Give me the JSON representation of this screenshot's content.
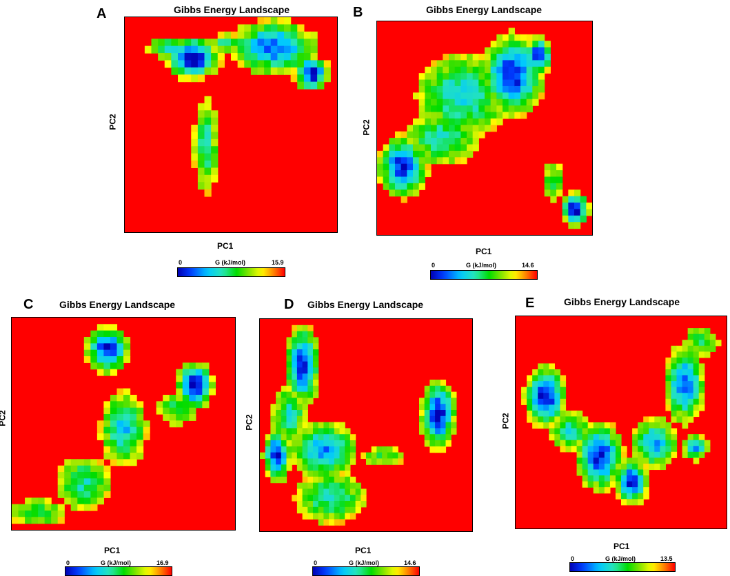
{
  "chart_data": [
    {
      "type": "heatmap",
      "panel": "A",
      "title": "Gibbs Energy Landscape",
      "xlabel": "PC1",
      "ylabel": "PC2",
      "colorbar": {
        "label": "G (kJ/mol)",
        "min": "0",
        "max": "15.9"
      },
      "grid": {
        "nx": 32,
        "ny": 30
      },
      "minima": [
        {
          "x": 0.32,
          "y": 0.81,
          "sx": 0.08,
          "sy": 0.06,
          "depth": 1.0
        },
        {
          "x": 0.88,
          "y": 0.74,
          "sx": 0.05,
          "sy": 0.05,
          "depth": 1.0
        },
        {
          "x": 0.7,
          "y": 0.86,
          "sx": 0.13,
          "sy": 0.08,
          "depth": 0.85
        },
        {
          "x": 0.38,
          "y": 0.4,
          "sx": 0.04,
          "sy": 0.16,
          "depth": 0.6
        },
        {
          "x": 0.22,
          "y": 0.86,
          "sx": 0.08,
          "sy": 0.04,
          "depth": 0.6
        },
        {
          "x": 0.5,
          "y": 0.88,
          "sx": 0.1,
          "sy": 0.03,
          "depth": 0.55
        }
      ]
    },
    {
      "type": "heatmap",
      "panel": "B",
      "title": "Gibbs Energy Landscape",
      "xlabel": "PC1",
      "ylabel": "PC2",
      "colorbar": {
        "label": "G (kJ/mol)",
        "min": "0",
        "max": "14.6"
      },
      "grid": {
        "nx": 36,
        "ny": 33
      },
      "minima": [
        {
          "x": 0.63,
          "y": 0.75,
          "sx": 0.09,
          "sy": 0.12,
          "depth": 0.95
        },
        {
          "x": 0.75,
          "y": 0.84,
          "sx": 0.04,
          "sy": 0.05,
          "depth": 1.0
        },
        {
          "x": 0.12,
          "y": 0.32,
          "sx": 0.07,
          "sy": 0.09,
          "depth": 0.95
        },
        {
          "x": 0.92,
          "y": 0.12,
          "sx": 0.04,
          "sy": 0.05,
          "depth": 1.0
        },
        {
          "x": 0.4,
          "y": 0.65,
          "sx": 0.15,
          "sy": 0.14,
          "depth": 0.65
        },
        {
          "x": 0.3,
          "y": 0.45,
          "sx": 0.12,
          "sy": 0.09,
          "depth": 0.6
        },
        {
          "x": 0.82,
          "y": 0.25,
          "sx": 0.04,
          "sy": 0.07,
          "depth": 0.5
        }
      ]
    },
    {
      "type": "heatmap",
      "panel": "C",
      "title": "Gibbs Energy Landscape",
      "xlabel": "PC1",
      "ylabel": "PC2",
      "colorbar": {
        "label": "G (kJ/mol)",
        "min": "0",
        "max": "16.9"
      },
      "grid": {
        "nx": 34,
        "ny": 33
      },
      "minima": [
        {
          "x": 0.43,
          "y": 0.85,
          "sx": 0.06,
          "sy": 0.07,
          "depth": 0.95
        },
        {
          "x": 0.82,
          "y": 0.68,
          "sx": 0.05,
          "sy": 0.07,
          "depth": 1.0
        },
        {
          "x": 0.5,
          "y": 0.48,
          "sx": 0.07,
          "sy": 0.12,
          "depth": 0.7
        },
        {
          "x": 0.32,
          "y": 0.22,
          "sx": 0.09,
          "sy": 0.09,
          "depth": 0.6
        },
        {
          "x": 0.12,
          "y": 0.08,
          "sx": 0.1,
          "sy": 0.05,
          "depth": 0.5
        },
        {
          "x": 0.74,
          "y": 0.57,
          "sx": 0.07,
          "sy": 0.06,
          "depth": 0.5
        }
      ]
    },
    {
      "type": "heatmap",
      "panel": "D",
      "title": "Gibbs Energy Landscape",
      "xlabel": "PC1",
      "ylabel": "PC2",
      "colorbar": {
        "label": "G (kJ/mol)",
        "min": "0",
        "max": "14.6"
      },
      "grid": {
        "nx": 40,
        "ny": 35
      },
      "minima": [
        {
          "x": 0.2,
          "y": 0.78,
          "sx": 0.05,
          "sy": 0.12,
          "depth": 0.95
        },
        {
          "x": 0.08,
          "y": 0.36,
          "sx": 0.04,
          "sy": 0.08,
          "depth": 0.95
        },
        {
          "x": 0.84,
          "y": 0.55,
          "sx": 0.05,
          "sy": 0.1,
          "depth": 1.0
        },
        {
          "x": 0.3,
          "y": 0.38,
          "sx": 0.1,
          "sy": 0.09,
          "depth": 0.8
        },
        {
          "x": 0.33,
          "y": 0.16,
          "sx": 0.12,
          "sy": 0.09,
          "depth": 0.6
        },
        {
          "x": 0.14,
          "y": 0.55,
          "sx": 0.06,
          "sy": 0.1,
          "depth": 0.6
        },
        {
          "x": 0.58,
          "y": 0.35,
          "sx": 0.08,
          "sy": 0.04,
          "depth": 0.45
        }
      ]
    },
    {
      "type": "heatmap",
      "panel": "E",
      "title": "Gibbs Energy Landscape",
      "xlabel": "PC1",
      "ylabel": "PC2",
      "colorbar": {
        "label": "G (kJ/mol)",
        "min": "0",
        "max": "13.5"
      },
      "grid": {
        "nx": 38,
        "ny": 36
      },
      "minima": [
        {
          "x": 0.14,
          "y": 0.62,
          "sx": 0.06,
          "sy": 0.09,
          "depth": 1.0
        },
        {
          "x": 0.4,
          "y": 0.34,
          "sx": 0.07,
          "sy": 0.1,
          "depth": 0.95
        },
        {
          "x": 0.55,
          "y": 0.22,
          "sx": 0.05,
          "sy": 0.07,
          "depth": 0.95
        },
        {
          "x": 0.8,
          "y": 0.68,
          "sx": 0.06,
          "sy": 0.12,
          "depth": 0.85
        },
        {
          "x": 0.66,
          "y": 0.4,
          "sx": 0.07,
          "sy": 0.08,
          "depth": 0.75
        },
        {
          "x": 0.85,
          "y": 0.38,
          "sx": 0.04,
          "sy": 0.04,
          "depth": 0.75
        },
        {
          "x": 0.88,
          "y": 0.88,
          "sx": 0.06,
          "sy": 0.05,
          "depth": 0.55
        },
        {
          "x": 0.26,
          "y": 0.46,
          "sx": 0.07,
          "sy": 0.07,
          "depth": 0.6
        }
      ]
    }
  ]
}
